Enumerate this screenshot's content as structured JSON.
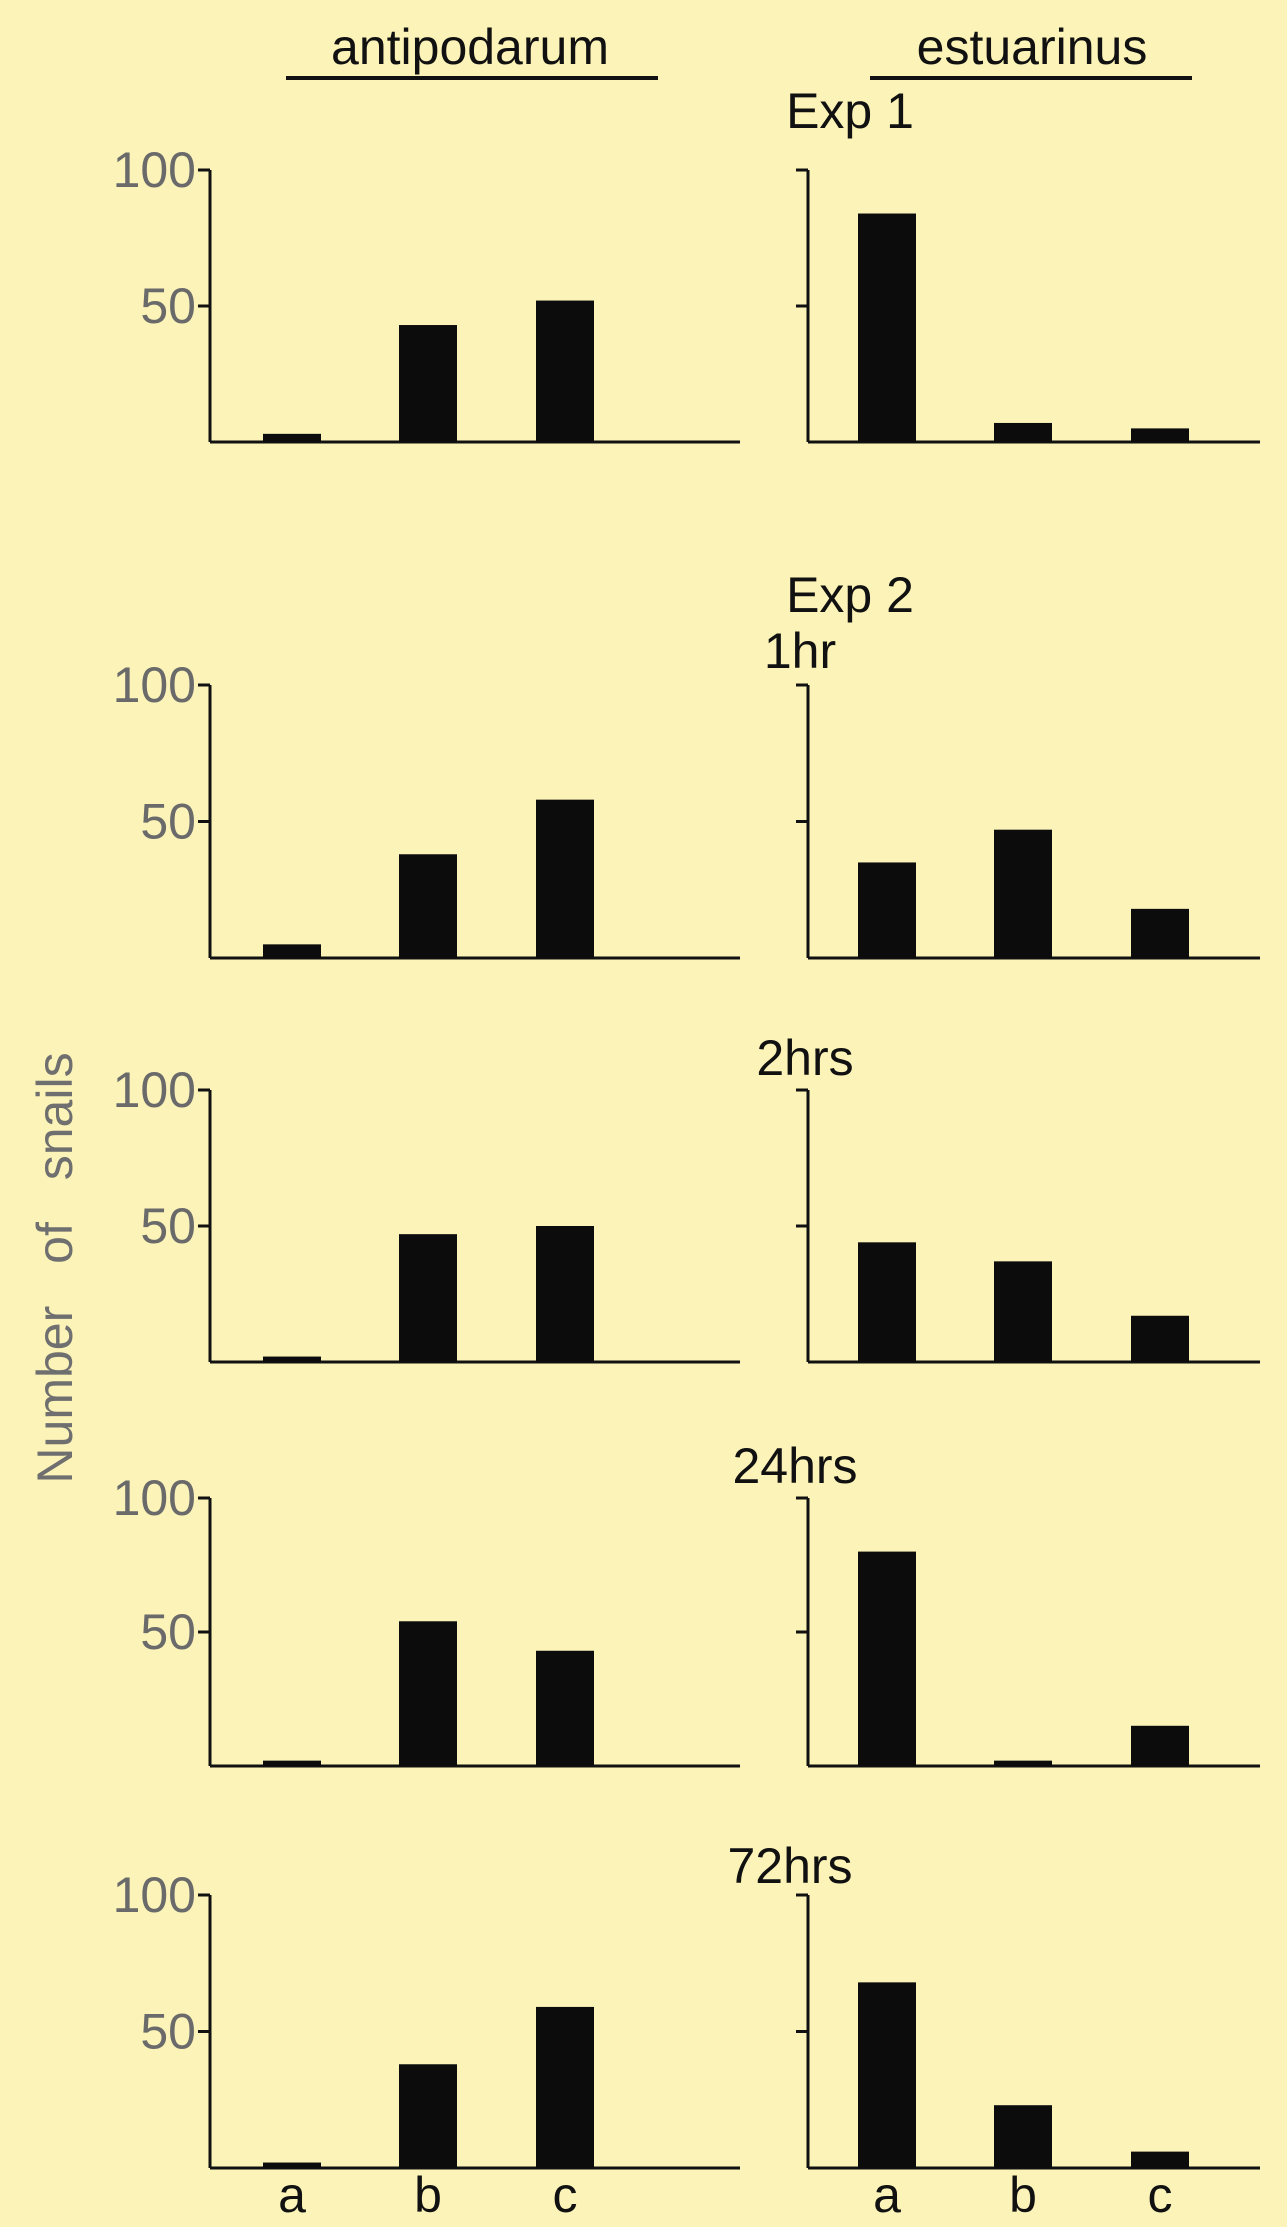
{
  "figure": {
    "ylabel": "Number of snails",
    "columns": [
      {
        "key": "antipodarum",
        "label": "antipodarum"
      },
      {
        "key": "estuarinus",
        "label": "estuarinus"
      }
    ],
    "rows": [
      {
        "labels": [
          "Exp 1"
        ]
      },
      {
        "labels": [
          "Exp 2",
          "1hr"
        ]
      },
      {
        "labels": [
          "2hrs"
        ]
      },
      {
        "labels": [
          "24hrs"
        ]
      },
      {
        "labels": [
          "72hrs"
        ]
      }
    ]
  },
  "chart_data": [
    {
      "type": "bar",
      "panel": "Exp 1 antipodarum",
      "categories": [
        "a",
        "b",
        "c"
      ],
      "values": [
        3,
        43,
        52
      ],
      "ylim": [
        0,
        100
      ],
      "yticks": [
        50,
        100
      ],
      "ylabel": "Number of snails"
    },
    {
      "type": "bar",
      "panel": "Exp 1 estuarinus",
      "categories": [
        "a",
        "b",
        "c"
      ],
      "values": [
        84,
        7,
        5
      ],
      "ylim": [
        0,
        100
      ]
    },
    {
      "type": "bar",
      "panel": "Exp 2 1hr antipodarum",
      "categories": [
        "a",
        "b",
        "c"
      ],
      "values": [
        5,
        38,
        58
      ],
      "ylim": [
        0,
        100
      ],
      "yticks": [
        50,
        100
      ],
      "ylabel": "Number of snails"
    },
    {
      "type": "bar",
      "panel": "Exp 2 1hr estuarinus",
      "categories": [
        "a",
        "b",
        "c"
      ],
      "values": [
        35,
        47,
        18
      ],
      "ylim": [
        0,
        100
      ]
    },
    {
      "type": "bar",
      "panel": "2hrs antipodarum",
      "categories": [
        "a",
        "b",
        "c"
      ],
      "values": [
        2,
        47,
        50
      ],
      "ylim": [
        0,
        100
      ],
      "yticks": [
        50,
        100
      ],
      "ylabel": "Number of snails"
    },
    {
      "type": "bar",
      "panel": "2hrs estuarinus",
      "categories": [
        "a",
        "b",
        "c"
      ],
      "values": [
        44,
        37,
        17
      ],
      "ylim": [
        0,
        100
      ]
    },
    {
      "type": "bar",
      "panel": "24hrs antipodarum",
      "categories": [
        "a",
        "b",
        "c"
      ],
      "values": [
        2,
        54,
        43
      ],
      "ylim": [
        0,
        100
      ],
      "yticks": [
        50,
        100
      ],
      "ylabel": "Number of snails"
    },
    {
      "type": "bar",
      "panel": "24hrs estuarinus",
      "categories": [
        "a",
        "b",
        "c"
      ],
      "values": [
        80,
        2,
        15
      ],
      "ylim": [
        0,
        100
      ]
    },
    {
      "type": "bar",
      "panel": "72hrs antipodarum",
      "categories": [
        "a",
        "b",
        "c"
      ],
      "values": [
        2,
        38,
        59
      ],
      "ylim": [
        0,
        100
      ],
      "yticks": [
        50,
        100
      ],
      "ylabel": "Number of snails"
    },
    {
      "type": "bar",
      "panel": "72hrs estuarinus",
      "categories": [
        "a",
        "b",
        "c"
      ],
      "values": [
        68,
        23,
        6
      ],
      "ylim": [
        0,
        100
      ]
    }
  ]
}
